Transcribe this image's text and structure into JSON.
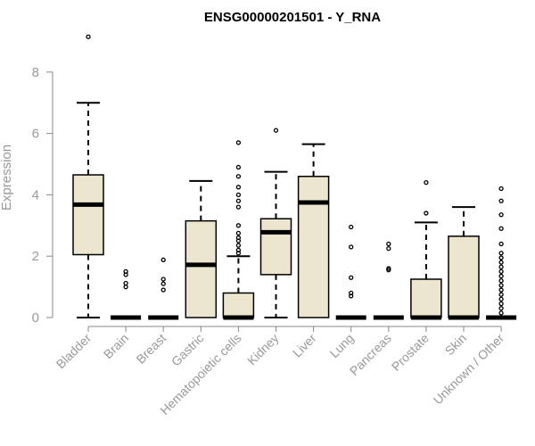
{
  "chart_data": {
    "type": "boxplot",
    "title": "ENSG00000201501 - Y_RNA",
    "ylabel": "Expression",
    "xlabel": "",
    "ylim": [
      0,
      9.2
    ],
    "yticks": [
      0,
      2,
      4,
      6,
      8
    ],
    "box_fill": "#ede6cf",
    "categories": [
      "Bladder",
      "Brain",
      "Breast",
      "Gastric",
      "Hematopoietic cells",
      "Kidney",
      "Liver",
      "Lung",
      "Pancreas",
      "Prostate",
      "Skin",
      "Unknown / Other"
    ],
    "boxes": [
      {
        "category": "Bladder",
        "min": 0,
        "q1": 2.05,
        "median": 3.68,
        "q3": 4.65,
        "max": 7.0,
        "outliers": [
          9.15
        ]
      },
      {
        "category": "Brain",
        "min": 0,
        "q1": 0,
        "median": 0,
        "q3": 0,
        "max": 0,
        "outliers": [
          1.0,
          1.12,
          1.4,
          1.5
        ]
      },
      {
        "category": "Breast",
        "min": 0,
        "q1": 0,
        "median": 0,
        "q3": 0,
        "max": 0,
        "outliers": [
          0.9,
          1.1,
          1.25,
          1.88
        ]
      },
      {
        "category": "Gastric",
        "min": 0,
        "q1": 0,
        "median": 1.72,
        "q3": 3.15,
        "max": 4.45,
        "outliers": []
      },
      {
        "category": "Hematopoietic cells",
        "min": 0,
        "q1": 0,
        "median": 0,
        "q3": 0.8,
        "max": 2.0,
        "outliers": [
          2.1,
          2.2,
          2.35,
          2.5,
          2.6,
          2.75,
          3.0,
          3.6,
          3.8,
          4.0,
          4.25,
          4.6,
          4.9,
          5.7
        ]
      },
      {
        "category": "Kidney",
        "min": 0,
        "q1": 1.4,
        "median": 2.78,
        "q3": 3.22,
        "max": 4.75,
        "outliers": [
          6.1
        ]
      },
      {
        "category": "Liver",
        "min": 0,
        "q1": 0,
        "median": 3.75,
        "q3": 4.6,
        "max": 5.65,
        "outliers": []
      },
      {
        "category": "Lung",
        "min": 0,
        "q1": 0,
        "median": 0,
        "q3": 0,
        "max": 0,
        "outliers": [
          0.7,
          0.8,
          1.3,
          2.3,
          2.95
        ]
      },
      {
        "category": "Pancreas",
        "min": 0,
        "q1": 0,
        "median": 0,
        "q3": 0,
        "max": 0,
        "outliers": [
          1.55,
          1.6,
          2.25,
          2.4
        ]
      },
      {
        "category": "Prostate",
        "min": 0,
        "q1": 0,
        "median": 0,
        "q3": 1.25,
        "max": 3.1,
        "outliers": [
          3.4,
          4.4
        ]
      },
      {
        "category": "Skin",
        "min": 0,
        "q1": 0,
        "median": 0,
        "q3": 2.65,
        "max": 3.6,
        "outliers": []
      },
      {
        "category": "Unknown / Other",
        "min": 0,
        "q1": 0,
        "median": 0,
        "q3": 0,
        "max": 0,
        "outliers": [
          0.15,
          0.3,
          0.45,
          0.6,
          0.75,
          0.9,
          1.05,
          1.2,
          1.35,
          1.5,
          1.65,
          1.8,
          1.95,
          2.1,
          2.4,
          2.9,
          3.35,
          3.8,
          4.2
        ]
      }
    ],
    "grid": false,
    "legend": "none"
  }
}
